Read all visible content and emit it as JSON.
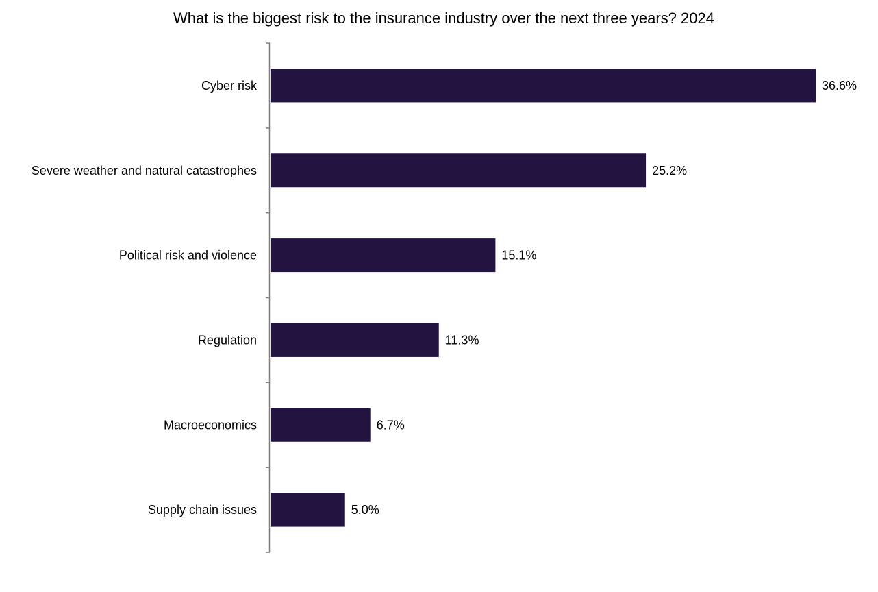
{
  "chart_data": {
    "type": "bar",
    "orientation": "horizontal",
    "title": "What is the biggest risk to the insurance industry over the next three years? 2024",
    "categories": [
      "Cyber risk",
      "Severe weather and natural catastrophes",
      "Political risk and violence",
      "Regulation",
      "Macroeconomics",
      "Supply chain issues"
    ],
    "values": [
      36.6,
      25.2,
      15.1,
      11.3,
      6.7,
      5.0
    ],
    "data_labels": [
      "36.6%",
      "25.2%",
      "15.1%",
      "11.3%",
      "6.7%",
      "5.0%"
    ],
    "value_unit": "%",
    "xlim": [
      0,
      36.6
    ],
    "grid": false,
    "legend": "none",
    "bar_color": "#231340",
    "axis_color": "#7f7f7f"
  }
}
